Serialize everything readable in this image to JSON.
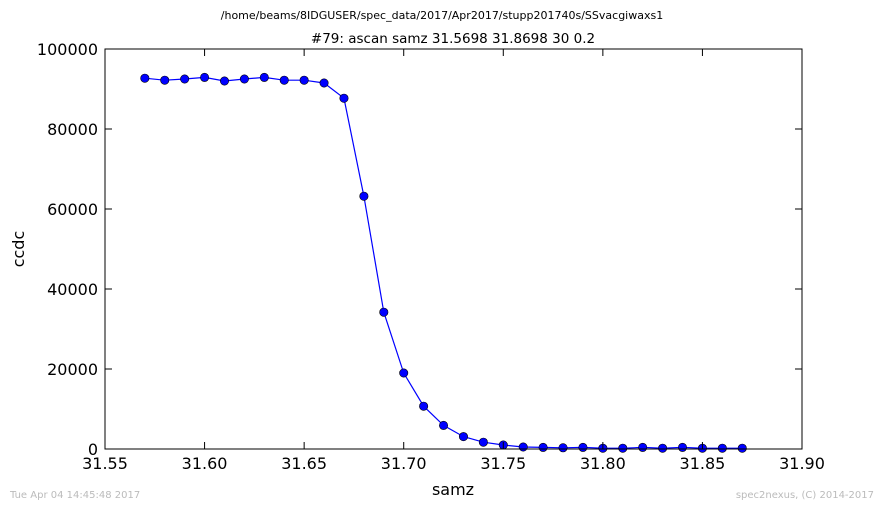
{
  "header": {
    "path": "/home/beams/8IDGUSER/spec_data/2017/Apr2017/stupp201740s/SSvacgiwaxs1"
  },
  "footer": {
    "timestamp": "Tue Apr 04 14:45:48 2017",
    "credit": "spec2nexus, (C) 2014-2017"
  },
  "colors": {
    "series": "#0000ff",
    "axes": "#000000",
    "footer_text": "#bbbbbb"
  },
  "chart_data": {
    "type": "line",
    "title": "#79: ascan  samz 31.5698 31.8698  30 0.2",
    "xlabel": "samz",
    "ylabel": "ccdc",
    "xlim": [
      31.55,
      31.9
    ],
    "ylim": [
      0,
      100000
    ],
    "xticks": [
      "31.55",
      "31.60",
      "31.65",
      "31.70",
      "31.75",
      "31.80",
      "31.85",
      "31.90"
    ],
    "yticks": [
      "0",
      "20000",
      "40000",
      "60000",
      "80000",
      "100000"
    ],
    "grid": false,
    "marker": "circle",
    "series": [
      {
        "x": [
          31.57,
          31.58,
          31.59,
          31.6,
          31.61,
          31.62,
          31.63,
          31.64,
          31.65,
          31.66,
          31.67,
          31.68,
          31.69,
          31.7,
          31.71,
          31.72,
          31.73,
          31.74,
          31.75,
          31.76,
          31.77,
          31.78,
          31.79,
          31.8,
          31.81,
          31.82,
          31.83,
          31.84,
          31.85,
          31.86,
          31.87
        ],
        "y": [
          92700,
          92200,
          92500,
          92900,
          92000,
          92500,
          92900,
          92200,
          92200,
          91500,
          87700,
          63200,
          34200,
          19000,
          10700,
          5900,
          3100,
          1700,
          1000,
          500,
          400,
          300,
          400,
          200,
          200,
          400,
          200,
          400,
          200,
          200,
          200
        ]
      }
    ]
  }
}
